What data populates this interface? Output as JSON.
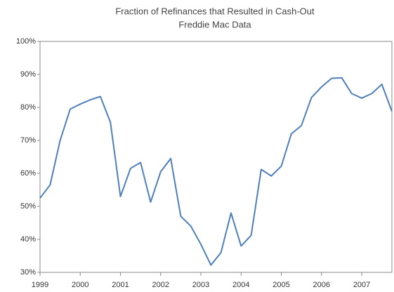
{
  "chart_data": {
    "type": "line",
    "title": "Fraction of Refinances that Resulted in Cash-Out",
    "subtitle": "Freddie Mac Data",
    "categories": [
      "1999",
      null,
      null,
      null,
      "2000",
      null,
      null,
      null,
      "2001",
      null,
      null,
      null,
      "2002",
      null,
      null,
      null,
      "2003",
      null,
      null,
      null,
      "2004",
      null,
      null,
      null,
      "2005",
      null,
      null,
      null,
      "2006",
      null,
      null,
      null,
      "2007",
      null,
      null,
      null
    ],
    "values": [
      52.5,
      56.5,
      70,
      79.5,
      81,
      82.3,
      83.3,
      75.5,
      53,
      61.5,
      63.3,
      51.3,
      60.5,
      64.5,
      47,
      44,
      38.5,
      32.2,
      36,
      48,
      38,
      41.2,
      61.2,
      59.2,
      62.2,
      72,
      74.5,
      83,
      86.2,
      88.8,
      89,
      84.2,
      82.8,
      84.2,
      87,
      78.8
    ],
    "color": "#4f7fba",
    "ylim": [
      30,
      100
    ],
    "yticks": [
      {
        "value": 30,
        "label": "30%"
      },
      {
        "value": 40,
        "label": "40%"
      },
      {
        "value": 50,
        "label": "50%"
      },
      {
        "value": 60,
        "label": "60%"
      },
      {
        "value": 70,
        "label": "70%"
      },
      {
        "value": 80,
        "label": "80%"
      },
      {
        "value": 90,
        "label": "90%"
      },
      {
        "value": 100,
        "label": "100%"
      }
    ],
    "grid": false
  }
}
